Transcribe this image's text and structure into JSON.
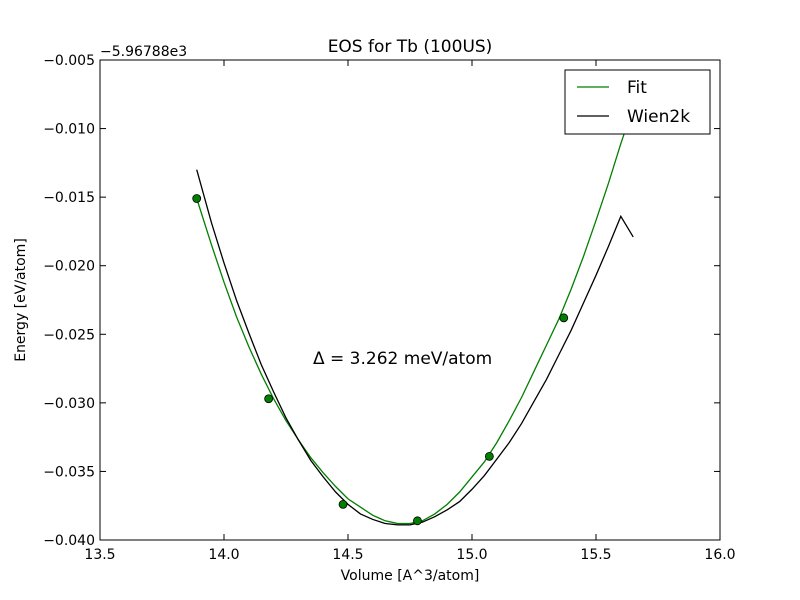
{
  "chart_data": {
    "type": "line",
    "title": "EOS for Tb (100US)",
    "xlabel": "Volume [A^3/atom]",
    "ylabel": "Energy [eV/atom]",
    "offset_label": "−5.96788e3",
    "annotation": "Δ = 3.262 meV/atom",
    "xlim": [
      13.5,
      16.0
    ],
    "ylim": [
      -0.04,
      -0.005
    ],
    "xticks": [
      13.5,
      14.0,
      14.5,
      15.0,
      15.5,
      16.0
    ],
    "xtick_labels": [
      "13.5",
      "14.0",
      "14.5",
      "15.0",
      "15.5",
      "16.0"
    ],
    "yticks": [
      -0.005,
      -0.01,
      -0.015,
      -0.02,
      -0.025,
      -0.03,
      -0.035,
      -0.04
    ],
    "ytick_labels": [
      "−0.005",
      "−0.010",
      "−0.015",
      "−0.020",
      "−0.025",
      "−0.030",
      "−0.035",
      "−0.040"
    ],
    "legend_position": "top-right",
    "grid": false,
    "points": {
      "color": "#007f00",
      "x": [
        13.89,
        14.18,
        14.48,
        14.78,
        15.07,
        15.37
      ],
      "y": [
        -0.0151,
        -0.0297,
        -0.0374,
        -0.0386,
        -0.0339,
        -0.0238
      ]
    },
    "series": [
      {
        "name": "Fit",
        "color": "#007f00",
        "x": [
          13.89,
          13.95,
          14.0,
          14.05,
          14.1,
          14.15,
          14.2,
          14.25,
          14.3,
          14.35,
          14.4,
          14.45,
          14.5,
          14.55,
          14.6,
          14.65,
          14.7,
          14.75,
          14.8,
          14.85,
          14.9,
          14.95,
          15.0,
          15.05,
          15.1,
          15.15,
          15.2,
          15.25,
          15.3,
          15.35,
          15.4,
          15.45,
          15.5,
          15.55,
          15.6,
          15.63
        ],
        "y": [
          -0.0151,
          -0.0185,
          -0.0212,
          -0.0237,
          -0.0259,
          -0.0279,
          -0.0297,
          -0.0313,
          -0.0327,
          -0.034,
          -0.0351,
          -0.0361,
          -0.037,
          -0.0376,
          -0.0382,
          -0.0386,
          -0.0388,
          -0.0388,
          -0.0386,
          -0.0381,
          -0.0374,
          -0.0365,
          -0.0354,
          -0.0343,
          -0.0329,
          -0.0313,
          -0.0296,
          -0.0277,
          -0.0258,
          -0.0239,
          -0.0217,
          -0.0193,
          -0.0167,
          -0.014,
          -0.0111,
          -0.0095
        ]
      },
      {
        "name": "Wien2k",
        "color": "#000000",
        "x": [
          13.89,
          13.95,
          14.0,
          14.05,
          14.1,
          14.15,
          14.2,
          14.25,
          14.3,
          14.35,
          14.4,
          14.45,
          14.5,
          14.55,
          14.6,
          14.65,
          14.7,
          14.75,
          14.8,
          14.85,
          14.9,
          14.95,
          15.0,
          15.05,
          15.1,
          15.15,
          15.2,
          15.25,
          15.3,
          15.35,
          15.4,
          15.45,
          15.5,
          15.55,
          15.6,
          15.65
        ],
        "y": [
          -0.013,
          -0.0169,
          -0.0198,
          -0.0225,
          -0.0249,
          -0.0272,
          -0.0292,
          -0.0311,
          -0.0327,
          -0.0342,
          -0.0354,
          -0.0365,
          -0.0374,
          -0.0381,
          -0.0385,
          -0.0388,
          -0.0389,
          -0.0389,
          -0.0387,
          -0.0383,
          -0.0378,
          -0.0372,
          -0.0363,
          -0.0353,
          -0.0341,
          -0.0329,
          -0.0315,
          -0.0299,
          -0.0283,
          -0.0265,
          -0.0247,
          -0.0227,
          -0.0207,
          -0.0186,
          -0.0164,
          -0.0179
        ]
      }
    ]
  }
}
